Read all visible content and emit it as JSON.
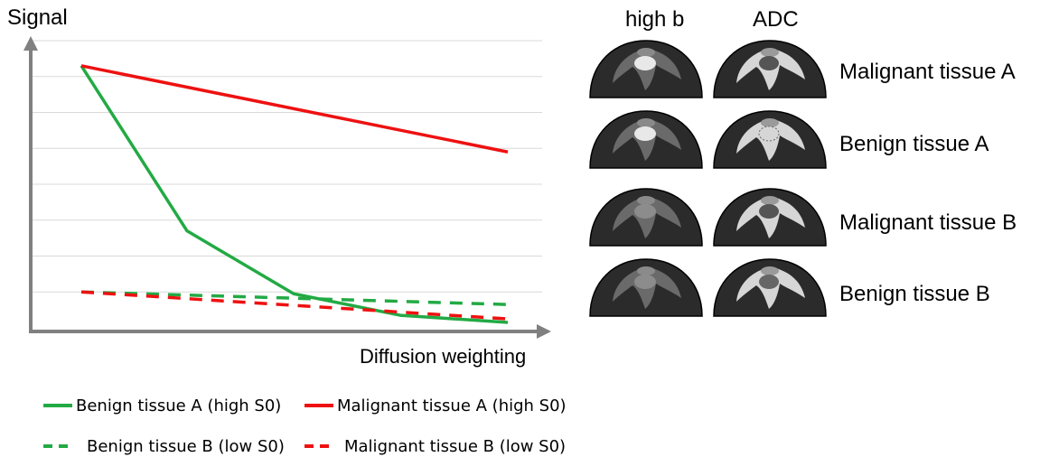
{
  "chart_data": {
    "type": "line",
    "xlabel": "Diffusion weighting",
    "ylabel": "Signal",
    "grid": true,
    "legend_position": "bottom",
    "x": [
      0,
      1,
      2,
      3,
      4
    ],
    "ylim": [
      0,
      8
    ],
    "series": [
      {
        "name": "Benign tissue A (high S0)",
        "color": "#22aa44",
        "dash": false,
        "values": [
          7.3,
          2.7,
          0.95,
          0.35,
          0.15
        ]
      },
      {
        "name": "Malignant tissue A (high S0)",
        "color": "#ee1111",
        "dash": false,
        "values": [
          7.3,
          null,
          null,
          null,
          4.9
        ]
      },
      {
        "name": "Benign tissue B (low S0)",
        "color": "#22aa44",
        "dash": true,
        "values": [
          1.0,
          null,
          null,
          null,
          0.65
        ]
      },
      {
        "name": "Malignant tissue B (low S0)",
        "color": "#ee1111",
        "dash": true,
        "values": [
          1.0,
          null,
          null,
          null,
          0.25
        ]
      }
    ]
  },
  "legend": [
    {
      "label": "Benign tissue A (high S0)",
      "color": "#22aa44",
      "dash": false
    },
    {
      "label": "Malignant tissue A (high S0)",
      "color": "#ee1111",
      "dash": false
    },
    {
      "label": "Benign tissue B (low S0)",
      "color": "#22aa44",
      "dash": true
    },
    {
      "label": "Malignant tissue B (low S0)",
      "color": "#ee1111",
      "dash": true
    }
  ],
  "panel": {
    "columns": [
      "high b",
      "ADC"
    ],
    "rows": [
      "Malignant tissue A",
      "Benign tissue A",
      "Malignant tissue B",
      "Benign tissue B"
    ]
  }
}
